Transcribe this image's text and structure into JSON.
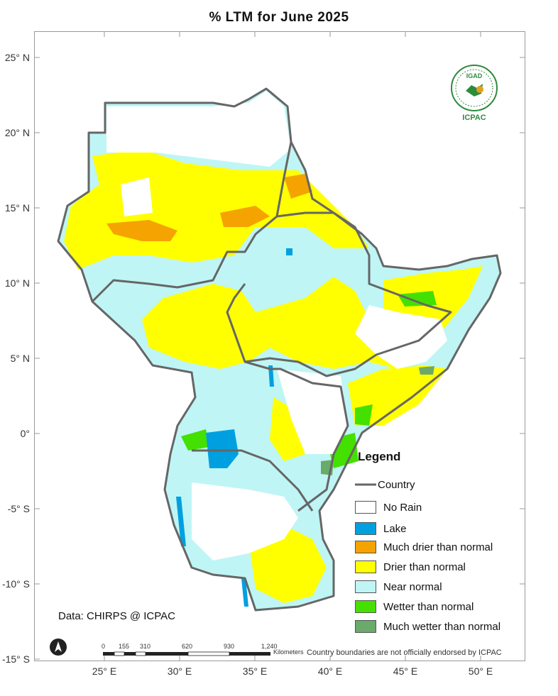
{
  "title": "% LTM  for  June 2025",
  "lat_labels": [
    "25° N",
    "20° N",
    "15° N",
    "10° N",
    "5° N",
    "0°",
    "-5° S",
    "-10° S",
    "-15° S"
  ],
  "lon_labels": [
    "25° E",
    "30° E",
    "35° E",
    "40° E",
    "45° E",
    "50° E"
  ],
  "legend": {
    "title": "Legend",
    "country_label": "Country",
    "items": [
      {
        "label": "No Rain",
        "color": "#ffffff"
      },
      {
        "label": "Lake",
        "color": "#00a0e0"
      },
      {
        "label": "Much drier than normal",
        "color": "#f5a300"
      },
      {
        "label": "Drier than normal",
        "color": "#ffff00"
      },
      {
        "label": "Near normal",
        "color": "#bff5f5"
      },
      {
        "label": "Wetter than normal",
        "color": "#44e000"
      },
      {
        "label": "Much wetter than normal",
        "color": "#6aaa6a"
      }
    ]
  },
  "data_source": "Data: CHIRPS @ ICPAC",
  "scale": {
    "ticks": [
      "0",
      "155",
      "310",
      "620",
      "930",
      "1,240"
    ],
    "unit": "Kilometers"
  },
  "disclaimer": "Country boundaries are not officially endorsed by ICPAC",
  "logo": {
    "top_text": "IGAD",
    "bottom_text": "ICPAC"
  }
}
